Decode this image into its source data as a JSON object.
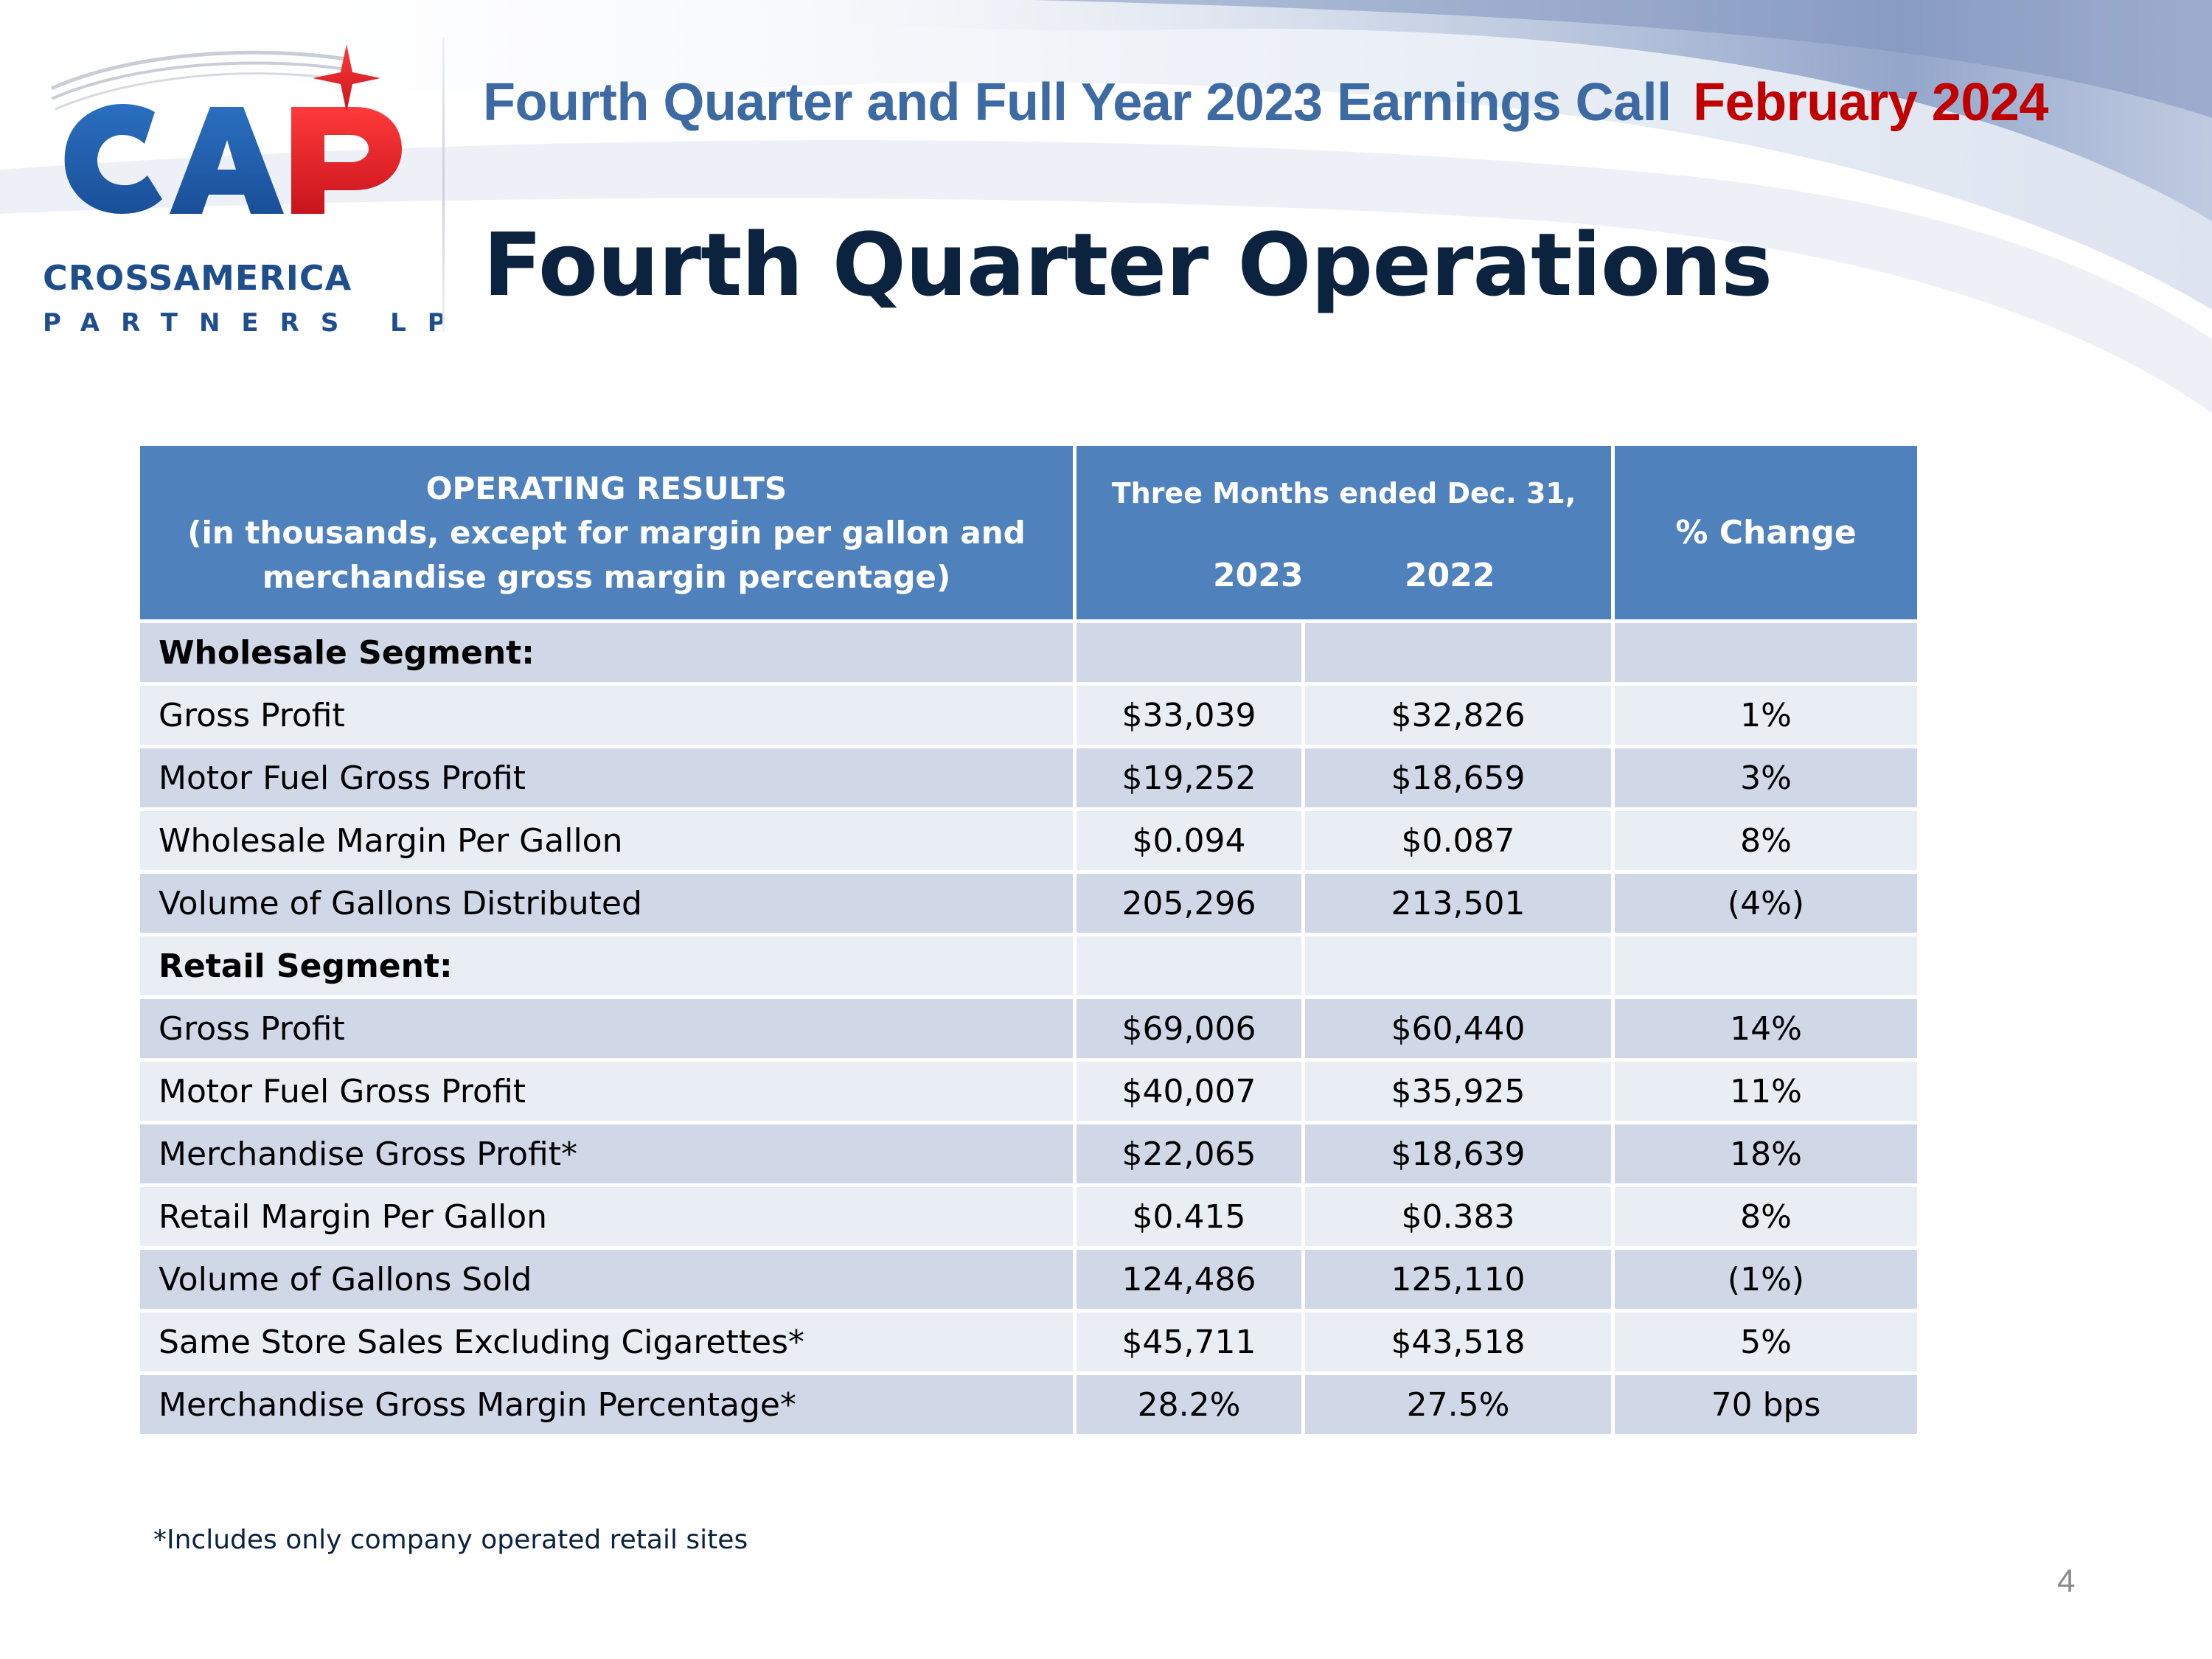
{
  "header": {
    "event_title": "Fourth Quarter and Full Year 2023 Earnings Call",
    "event_date": "February 2024",
    "slide_title": "Fourth Quarter Operations"
  },
  "logo": {
    "acronym": "CAP",
    "company_name": "CROSSAMERICA",
    "company_suffix": "PARTNERS LP",
    "colors": {
      "blue": "#1f4e8c",
      "red": "#e3202a"
    }
  },
  "table": {
    "header": {
      "results_line1": "OPERATING RESULTS",
      "results_line2": "(in thousands, except for margin per gallon and",
      "results_line3": "merchandise gross margin percentage)",
      "period_label": "Three Months ended Dec. 31,",
      "year_current": "2023",
      "year_prior": "2022",
      "change_label": "% Change"
    },
    "rows": [
      {
        "label": "Wholesale Segment:",
        "v2023": "",
        "v2022": "",
        "change": ""
      },
      {
        "label": "Gross Profit",
        "v2023": "$33,039",
        "v2022": "$32,826",
        "change": "1%"
      },
      {
        "label": "Motor Fuel Gross Profit",
        "v2023": "$19,252",
        "v2022": "$18,659",
        "change": "3%"
      },
      {
        "label": "Wholesale Margin Per Gallon",
        "v2023": "$0.094",
        "v2022": "$0.087",
        "change": "8%"
      },
      {
        "label": "Volume of Gallons Distributed",
        "v2023": "205,296",
        "v2022": "213,501",
        "change": "(4%)"
      },
      {
        "label": "Retail Segment:",
        "v2023": "",
        "v2022": "",
        "change": ""
      },
      {
        "label": "Gross Profit",
        "v2023": "$69,006",
        "v2022": "$60,440",
        "change": "14%"
      },
      {
        "label": "Motor Fuel Gross Profit",
        "v2023": "$40,007",
        "v2022": "$35,925",
        "change": "11%"
      },
      {
        "label": "Merchandise Gross Profit*",
        "v2023": "$22,065",
        "v2022": "$18,639",
        "change": "18%"
      },
      {
        "label": "Retail Margin Per Gallon",
        "v2023": "$0.415",
        "v2022": "$0.383",
        "change": "8%"
      },
      {
        "label": "Volume of Gallons Sold",
        "v2023": "124,486",
        "v2022": "125,110",
        "change": "(1%)"
      },
      {
        "label": "Same Store Sales Excluding Cigarettes*",
        "v2023": "$45,711",
        "v2022": "$43,518",
        "change": "5%"
      },
      {
        "label": "Merchandise Gross Margin Percentage*",
        "v2023": "28.2%",
        "v2022": "27.5%",
        "change": "70 bps"
      }
    ]
  },
  "footnote": "*Includes only company operated retail sites",
  "page_number": "4",
  "colors": {
    "header_blue": "#4f81bd",
    "row_dark": "#d0d8e8",
    "row_light": "#e9edf4",
    "title_navy": "#0c2340",
    "event_blue": "#3d6aa3",
    "event_red": "#c00000"
  }
}
